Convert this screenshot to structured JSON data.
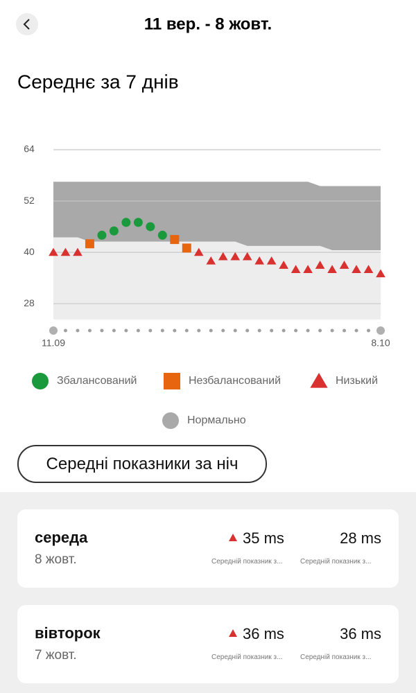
{
  "header": {
    "title": "11 вер. - 8 жовт."
  },
  "section_title": "Середнє за 7 днів",
  "chart_data": {
    "type": "scatter",
    "ylim": [
      24.3,
      64
    ],
    "yticks": [
      64,
      52,
      40,
      28
    ],
    "grid": true,
    "categories": [
      "11.09",
      null,
      null,
      null,
      null,
      null,
      null,
      null,
      null,
      null,
      null,
      null,
      null,
      null,
      null,
      null,
      null,
      null,
      null,
      null,
      null,
      null,
      null,
      null,
      null,
      null,
      null,
      "8.10"
    ],
    "series": [
      {
        "name": "Збалансований",
        "color": "#1a9a3c",
        "marker": "circle",
        "values": [
          null,
          null,
          null,
          null,
          44,
          45,
          47,
          47,
          46,
          44,
          null,
          null,
          null,
          null,
          null,
          null,
          null,
          null,
          null,
          null,
          null,
          null,
          null,
          null,
          null,
          null,
          null,
          null
        ]
      },
      {
        "name": "Незбалансований",
        "color": "#e8650f",
        "marker": "square",
        "values": [
          null,
          null,
          null,
          42,
          null,
          null,
          null,
          null,
          null,
          null,
          43,
          41,
          null,
          null,
          null,
          null,
          null,
          null,
          null,
          null,
          null,
          null,
          null,
          null,
          null,
          null,
          null,
          null
        ]
      },
      {
        "name": "Низький",
        "color": "#d93030",
        "marker": "triangle",
        "values": [
          40,
          40,
          40,
          null,
          null,
          null,
          null,
          null,
          null,
          null,
          null,
          null,
          40,
          38,
          39,
          39,
          39,
          38,
          38,
          37,
          36,
          36,
          37,
          36,
          37,
          36,
          36,
          35
        ]
      }
    ],
    "band": {
      "name": "Нормально",
      "color": "#a9a9a9",
      "upper": [
        56.5,
        56.5,
        56.5,
        56.5,
        56.5,
        56.5,
        56.5,
        56.5,
        56.5,
        56.5,
        56.5,
        56.5,
        56.5,
        56.5,
        56.5,
        56.5,
        56.5,
        56.5,
        56.5,
        56.5,
        56.5,
        56.5,
        55.5,
        55.5,
        55.5,
        55.5,
        55.5,
        55.5
      ],
      "lower": [
        43.5,
        43.5,
        43.5,
        42.5,
        42.5,
        42.5,
        42.5,
        42.5,
        42.5,
        42.5,
        42.5,
        42.5,
        42.5,
        42.5,
        42.5,
        42.5,
        41.5,
        41.5,
        41.5,
        41.5,
        41.5,
        41.5,
        41.5,
        40.5,
        40.5,
        40.5,
        40.5,
        40.5
      ]
    }
  },
  "button": "Середні показники за ніч",
  "cards": [
    {
      "day": "середа",
      "date": "8 жовт.",
      "value1": "35 ms",
      "label1": "Середній показник з...",
      "value2": "28 ms",
      "label2": "Середній показник з..."
    },
    {
      "day": "вівторок",
      "date": "7 жовт.",
      "value1": "36 ms",
      "label1": "Середній показник з...",
      "value2": "36 ms",
      "label2": "Середній показник з..."
    }
  ]
}
